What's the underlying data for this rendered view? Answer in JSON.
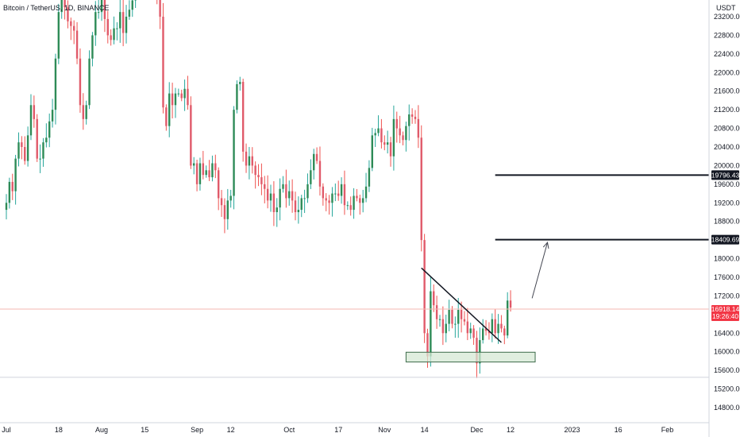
{
  "header": {
    "title": "Bitcoin / TetherUS, 1D, BINANCE"
  },
  "price_scale": {
    "unit": "USDT"
  },
  "colors": {
    "up": "#26a69a",
    "down": "#ef5350",
    "up_body": "#2e8b57",
    "down_body": "#e05a6a",
    "axis_line": "#d1d4dc",
    "price_line": "#f5b7b1",
    "tag_red": "#f23645",
    "line_black": "#131722",
    "zone_fill": "#d5e8d4",
    "zone_stroke": "#3d6b4a",
    "text": "#131722"
  },
  "last_price": {
    "value": "16918.14",
    "countdown": "19:26:40"
  },
  "marked_levels": [
    "19796.43",
    "18409.69"
  ],
  "chart_data": {
    "type": "candlestick",
    "title": "Bitcoin / TetherUS, 1D, BINANCE",
    "ylabel": "USDT",
    "ylim": [
      14400,
      23600
    ],
    "x_range_days": [
      0,
      227
    ],
    "yticks": [
      "23200.00",
      "22800.00",
      "22400.00",
      "22000.00",
      "21600.00",
      "21200.00",
      "20800.00",
      "20400.00",
      "20000.00",
      "19600.00",
      "19200.00",
      "18800.00",
      "18400.00",
      "18000.00",
      "17600.00",
      "17200.00",
      "16400.00",
      "16000.00",
      "15600.00",
      "15200.00",
      "14800.00"
    ],
    "xticks": [
      {
        "label": "Jul",
        "day": 0
      },
      {
        "label": "18",
        "day": 17
      },
      {
        "label": "Aug",
        "day": 31
      },
      {
        "label": "15",
        "day": 45
      },
      {
        "label": "Sep",
        "day": 62
      },
      {
        "label": "12",
        "day": 73
      },
      {
        "label": "Oct",
        "day": 92
      },
      {
        "label": "17",
        "day": 108
      },
      {
        "label": "Nov",
        "day": 123
      },
      {
        "label": "14",
        "day": 136
      },
      {
        "label": "Dec",
        "day": 153
      },
      {
        "label": "12",
        "day": 164
      },
      {
        "label": "2023",
        "day": 184
      },
      {
        "label": "16",
        "day": 199
      },
      {
        "label": "Feb",
        "day": 215
      }
    ],
    "closes": [
      19200,
      19650,
      19450,
      20150,
      20500,
      20400,
      20100,
      20650,
      21300,
      21000,
      20150,
      20150,
      20500,
      20600,
      20950,
      21200,
      22300,
      23300,
      23650,
      23400,
      23100,
      23000,
      22900,
      22300,
      21300,
      21000,
      21300,
      22300,
      22800,
      23300,
      23300,
      23750,
      23150,
      22800,
      22700,
      22950,
      22950,
      23300,
      22850,
      23200,
      23350,
      23550,
      23950,
      24400,
      24300,
      24100,
      23900,
      23900,
      24300,
      23650,
      23200,
      21250,
      20850,
      21550,
      21300,
      21550,
      21550,
      21450,
      21650,
      21300,
      20000,
      20050,
      19600,
      20050,
      19800,
      19900,
      19750,
      20050,
      19900,
      19300,
      19150,
      18850,
      19250,
      19350,
      21200,
      21750,
      21800,
      20300,
      20000,
      20200,
      20000,
      19800,
      19750,
      19600,
      19500,
      19250,
      19400,
      19000,
      19100,
      19500,
      19600,
      19300,
      19450,
      19250,
      19000,
      19050,
      19300,
      19300,
      19600,
      19900,
      20250,
      20100,
      19550,
      19300,
      19250,
      19200,
      19400,
      19400,
      19350,
      19600,
      19150,
      19150,
      19050,
      19350,
      19300,
      19200,
      19300,
      19550,
      19950,
      20650,
      20700,
      20800,
      20500,
      20450,
      20500,
      20200,
      21000,
      20800,
      20650,
      20550,
      20850,
      21100,
      21050,
      21000,
      20600,
      18400,
      16400,
      15900,
      17300,
      17000,
      16700,
      16700,
      16400,
      16600,
      16900,
      16600,
      16600,
      16900,
      16700,
      16650,
      16400,
      16500,
      16300,
      15750,
      16250,
      16500,
      16450,
      16400,
      16700,
      16400,
      16600,
      16500,
      16350,
      17100,
      16950
    ],
    "price_lines": [
      {
        "price": 19796.43,
        "from_day": 159,
        "label": "19796.43"
      },
      {
        "price": 18409.69,
        "from_day": 159,
        "label": "18409.69"
      }
    ],
    "trendline": {
      "from": {
        "day": 135,
        "price": 17800
      },
      "to": {
        "day": 161,
        "price": 16200
      }
    },
    "arrow": {
      "from": {
        "day": 171,
        "price": 17150
      },
      "to": {
        "day": 176,
        "price": 18350
      }
    },
    "support_zone": {
      "from_day": 130,
      "to_day": 172,
      "low": 15780,
      "high": 15990
    },
    "horizontal_ref": {
      "price": 15450
    },
    "last_price_line": {
      "price": 16918.14
    }
  }
}
